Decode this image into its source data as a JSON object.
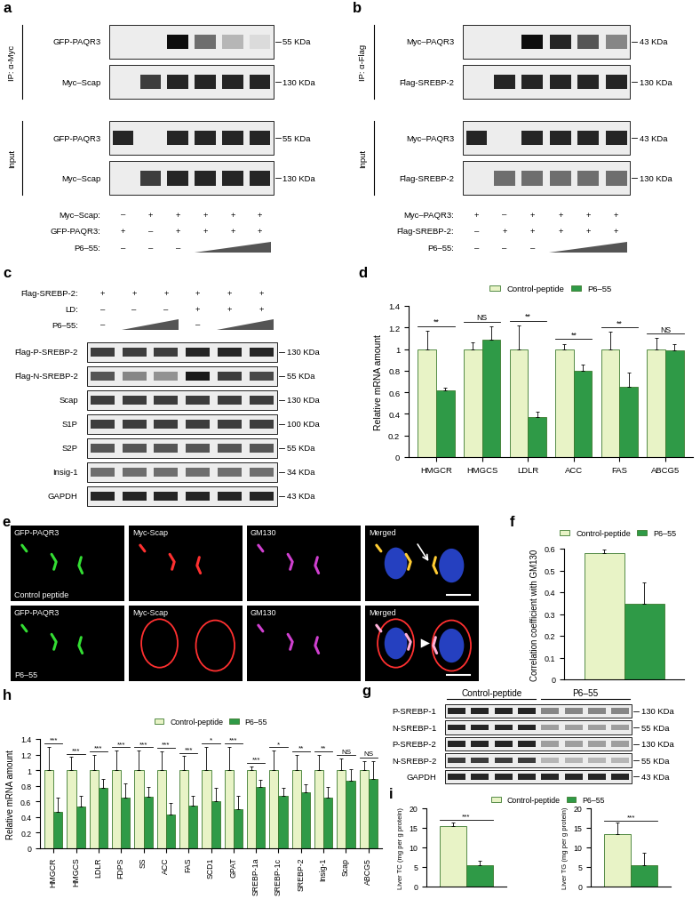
{
  "blots": [
    {
      "panel": "a",
      "conditions_above": false,
      "rows": [
        {
          "group": "IP: α-Myc",
          "label": "GFP-PAQR3",
          "mw": "55 KDa",
          "bands": [
            0,
            0,
            1,
            0.6,
            0.3,
            0.15
          ]
        },
        {
          "group": "IP: α-Myc",
          "label": "Myc–Scap",
          "mw": "130 KDa",
          "bands": [
            0,
            0.8,
            0.9,
            0.9,
            0.9,
            0.9
          ]
        },
        {
          "group": "Input",
          "label": "GFP-PAQR3",
          "mw": "55 KDa",
          "bands": [
            0.9,
            0,
            0.9,
            0.9,
            0.9,
            0.9
          ]
        },
        {
          "group": "Input",
          "label": "Myc–Scap",
          "mw": "130 KDa",
          "bands": [
            0,
            0.8,
            0.9,
            0.9,
            0.9,
            0.9
          ]
        }
      ],
      "conditions": [
        {
          "label": "Myc–Scap:",
          "values": [
            "–",
            "+",
            "+",
            "+",
            "+",
            "+"
          ]
        },
        {
          "label": "GFP-PAQR3:",
          "values": [
            "+",
            "–",
            "+",
            "+",
            "+",
            "+"
          ]
        },
        {
          "label": "P6–55:",
          "values": [
            "–",
            "–",
            "–",
            null,
            null,
            null
          ]
        }
      ]
    },
    {
      "panel": "b",
      "conditions_above": false,
      "rows": [
        {
          "group": "IP: α-Flag",
          "label": "Myc–PAQR3",
          "mw": "43 KDa",
          "bands": [
            0,
            0,
            1,
            0.9,
            0.7,
            0.5
          ]
        },
        {
          "group": "IP: α-Flag",
          "label": "Flag-SREBP-2",
          "mw": "130 KDa",
          "bands": [
            0,
            0.9,
            0.9,
            0.9,
            0.9,
            0.9
          ]
        },
        {
          "group": "Input",
          "label": "Myc–PAQR3",
          "mw": "43 KDa",
          "bands": [
            0.9,
            0,
            0.9,
            0.9,
            0.9,
            0.9
          ]
        },
        {
          "group": "Input",
          "label": "Flag-SREBP-2",
          "mw": "130 KDa",
          "bands": [
            0,
            0.6,
            0.6,
            0.6,
            0.6,
            0.6
          ]
        }
      ],
      "conditions": [
        {
          "label": "Myc–PAQR3:",
          "values": [
            "+",
            "–",
            "+",
            "+",
            "+",
            "+"
          ]
        },
        {
          "label": "Flag-SREBP-2:",
          "values": [
            "–",
            "+",
            "+",
            "+",
            "+",
            "+"
          ]
        },
        {
          "label": "P6–55:",
          "values": [
            "–",
            "–",
            "–",
            null,
            null,
            null
          ]
        }
      ]
    },
    {
      "panel": "c",
      "conditions_above": true,
      "rows": [
        {
          "label": "Flag-P-SREBP-2",
          "mw": "130 KDa",
          "bands": [
            0.8,
            0.8,
            0.8,
            0.9,
            0.9,
            0.9
          ]
        },
        {
          "label": "Flag-N-SREBP-2",
          "mw": "55 KDa",
          "bands": [
            0.7,
            0.5,
            0.45,
            0.95,
            0.8,
            0.75
          ]
        },
        {
          "label": "Scap",
          "mw": "130 KDa",
          "bands": [
            0.8,
            0.8,
            0.8,
            0.8,
            0.8,
            0.8
          ]
        },
        {
          "label": "S1P",
          "mw": "100 KDa",
          "bands": [
            0.8,
            0.8,
            0.8,
            0.8,
            0.8,
            0.8
          ]
        },
        {
          "label": "S2P",
          "mw": "55 KDa",
          "bands": [
            0.7,
            0.7,
            0.7,
            0.7,
            0.7,
            0.7
          ]
        },
        {
          "label": "Insig-1",
          "mw": "34 KDa",
          "bands": [
            0.6,
            0.6,
            0.6,
            0.6,
            0.6,
            0.6
          ]
        },
        {
          "label": "GAPDH",
          "mw": "43 KDa",
          "bands": [
            0.9,
            0.9,
            0.9,
            0.9,
            0.9,
            0.9
          ]
        }
      ],
      "conditions": [
        {
          "label": "Flag-SREBP-2:",
          "values": [
            "+",
            "+",
            "+",
            "+",
            "+",
            "+"
          ]
        },
        {
          "label": "LD:",
          "values": [
            "–",
            "–",
            "–",
            "+",
            "+",
            "+"
          ]
        },
        {
          "label": "P6–55:",
          "values": [
            "–",
            null,
            null,
            "–",
            null,
            null
          ]
        }
      ]
    },
    {
      "panel": "g",
      "lane_groups": [
        {
          "label": "Control-peptide",
          "lanes": 4
        },
        {
          "label": "P6–55",
          "lanes": 4
        }
      ],
      "rows": [
        {
          "label": "P-SREBP-1",
          "mw": "130 KDa",
          "bands": [
            0.9,
            0.9,
            0.9,
            0.9,
            0.5,
            0.5,
            0.5,
            0.5
          ]
        },
        {
          "label": "N-SREBP-1",
          "mw": "55 KDa",
          "bands": [
            0.9,
            0.9,
            0.9,
            0.9,
            0.4,
            0.4,
            0.4,
            0.4
          ]
        },
        {
          "label": "P-SREBP-2",
          "mw": "130 KDa",
          "bands": [
            0.9,
            0.9,
            0.9,
            0.9,
            0.4,
            0.4,
            0.4,
            0.4
          ]
        },
        {
          "label": "N-SREBP-2",
          "mw": "55 KDa",
          "bands": [
            0.8,
            0.8,
            0.8,
            0.8,
            0.3,
            0.3,
            0.3,
            0.3
          ]
        },
        {
          "label": "GAPDH",
          "mw": "43 KDa",
          "bands": [
            0.9,
            0.9,
            0.9,
            0.9,
            0.9,
            0.9,
            0.9,
            0.9
          ]
        }
      ]
    }
  ],
  "images": {
    "panel": "e",
    "columns": [
      "GFP-PAQR3",
      "Myc-Scap",
      "GM130",
      "Merged"
    ],
    "rows": [
      "Control peptide",
      "P6–55"
    ]
  },
  "chart_data": [
    {
      "panel": "d",
      "type": "bar",
      "ylabel": "Relative mRNA amount",
      "categories": [
        "HMGCR",
        "HMGCS",
        "LDLR",
        "ACC",
        "FAS",
        "ABCG5"
      ],
      "series": [
        {
          "name": "Control-peptide",
          "color": "#e8f3c6",
          "values": [
            1,
            1,
            1,
            1,
            1,
            1
          ],
          "errors": [
            0.17,
            0.06,
            0.22,
            0.05,
            0.16,
            0.1
          ]
        },
        {
          "name": "P6–55",
          "color": "#2f9a47",
          "values": [
            0.62,
            1.09,
            0.37,
            0.8,
            0.65,
            0.99
          ],
          "errors": [
            0.02,
            0.12,
            0.05,
            0.06,
            0.13,
            0.06
          ]
        }
      ],
      "significance": [
        "**",
        "NS",
        "**",
        "**",
        "**",
        "NS"
      ],
      "ylim": [
        0,
        1.4
      ],
      "yticks": [
        0,
        0.2,
        0.4,
        0.6,
        0.8,
        1,
        1.2,
        1.4
      ],
      "legend": "upper center"
    },
    {
      "panel": "f",
      "type": "bar",
      "ylabel": "Correlation coefficient with GM130",
      "categories": [
        null
      ],
      "series": [
        {
          "name": "Control-peptide",
          "color": "#e8f3c6",
          "values": [
            0.58
          ],
          "errors": [
            0.015
          ]
        },
        {
          "name": "P6–55",
          "color": "#2f9a47",
          "values": [
            0.345
          ],
          "errors": [
            0.1
          ]
        }
      ],
      "ylim": [
        0,
        0.6
      ],
      "yticks": [
        0,
        0.1,
        0.2,
        0.3,
        0.4,
        0.5,
        0.6
      ],
      "tick_labels": "y",
      "legend": "upper center"
    },
    {
      "panel": "h",
      "type": "bar",
      "ylabel": "Relative mRNA amount",
      "categories": [
        "HMGCR",
        "HMGCS",
        "LDLR",
        "FDPS",
        "SS",
        "ACC",
        "FAS",
        "SCD1",
        "GPAT",
        "SREBP-1a",
        "SREBP-1c",
        "SREBP-2",
        "Insig-1",
        "Scap",
        "ABCG5"
      ],
      "series": [
        {
          "name": "Control-peptide",
          "color": "#e8f3c6",
          "values": [
            1,
            1,
            1,
            1,
            1,
            1,
            1,
            1,
            1,
            1,
            1,
            1,
            1,
            1,
            1
          ],
          "errors": [
            0.3,
            0.17,
            0.2,
            0.25,
            0.25,
            0.24,
            0.18,
            0.3,
            0.3,
            0.05,
            0.25,
            0.2,
            0.2,
            0.15,
            0.12
          ]
        },
        {
          "name": "P6–55",
          "color": "#2f9a47",
          "values": [
            0.47,
            0.54,
            0.77,
            0.65,
            0.66,
            0.43,
            0.55,
            0.6,
            0.5,
            0.78,
            0.67,
            0.72,
            0.65,
            0.86,
            0.89
          ],
          "errors": [
            0.18,
            0.13,
            0.12,
            0.18,
            0.12,
            0.15,
            0.12,
            0.17,
            0.17,
            0.1,
            0.1,
            0.1,
            0.13,
            0.15,
            0.23
          ]
        }
      ],
      "significance": [
        "***",
        "***",
        "***",
        "***",
        "***",
        "***",
        "***",
        "*",
        "***",
        "***",
        "*",
        "**",
        "**",
        "NS",
        "NS"
      ],
      "ylim": [
        0,
        1.4
      ],
      "yticks": [
        0,
        0.2,
        0.4,
        0.6,
        0.8,
        1,
        1.2,
        1.4
      ],
      "legend": "upper center"
    },
    {
      "panel": "i",
      "type": "bar",
      "ylabel": "Liver TC (mg per g protein)",
      "categories": [
        null
      ],
      "series": [
        {
          "name": "Control-peptide",
          "color": "#e8f3c6",
          "values": [
            15.4
          ],
          "errors": [
            1.0
          ]
        },
        {
          "name": "P6–55",
          "color": "#2f9a47",
          "values": [
            5.5
          ],
          "errors": [
            1.0
          ]
        }
      ],
      "significance": [
        "***"
      ],
      "ylim": [
        0,
        20
      ],
      "yticks": [
        0,
        5,
        10,
        15,
        20
      ],
      "tick_labels": "y",
      "legend": "upper center"
    },
    {
      "type": "bar",
      "ylabel": "Liver TG (mg per g protein)",
      "categories": [
        null
      ],
      "series": [
        {
          "name": "Control-peptide",
          "color": "#e8f3c6",
          "values": [
            13.3
          ],
          "errors": [
            3.0
          ]
        },
        {
          "name": "P6–55",
          "color": "#2f9a47",
          "values": [
            5.4
          ],
          "errors": [
            3.2
          ]
        }
      ],
      "significance": [
        "***"
      ],
      "ylim": [
        0,
        20
      ],
      "yticks": [
        0,
        5,
        10,
        15,
        20
      ],
      "tick_labels": "y"
    }
  ]
}
